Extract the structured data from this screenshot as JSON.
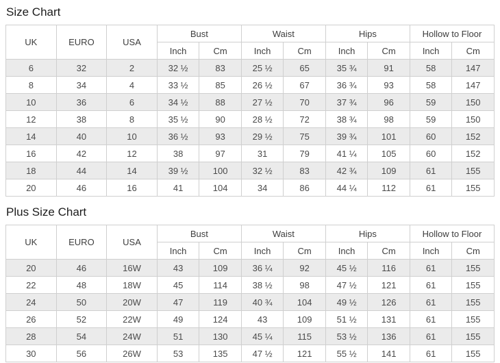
{
  "colors": {
    "background": "#ffffff",
    "border": "#cfcfcf",
    "alt_row_background": "#ebebeb",
    "cell_text": "#4a4a4a",
    "title_text": "#1c1c1c"
  },
  "tables": [
    {
      "title": "Size Chart",
      "corner_headers": [
        "UK",
        "EURO",
        "USA"
      ],
      "measure_groups": [
        "Bust",
        "Waist",
        "Hips",
        "Hollow to Floor"
      ],
      "unit_labels": [
        "Inch",
        "Cm"
      ],
      "rows": [
        [
          "6",
          "32",
          "2",
          "32 ½",
          "83",
          "25 ½",
          "65",
          "35 ¾",
          "91",
          "58",
          "147"
        ],
        [
          "8",
          "34",
          "4",
          "33 ½",
          "85",
          "26 ½",
          "67",
          "36 ¾",
          "93",
          "58",
          "147"
        ],
        [
          "10",
          "36",
          "6",
          "34 ½",
          "88",
          "27 ½",
          "70",
          "37 ¾",
          "96",
          "59",
          "150"
        ],
        [
          "12",
          "38",
          "8",
          "35 ½",
          "90",
          "28 ½",
          "72",
          "38 ¾",
          "98",
          "59",
          "150"
        ],
        [
          "14",
          "40",
          "10",
          "36 ½",
          "93",
          "29 ½",
          "75",
          "39 ¾",
          "101",
          "60",
          "152"
        ],
        [
          "16",
          "42",
          "12",
          "38",
          "97",
          "31",
          "79",
          "41 ¼",
          "105",
          "60",
          "152"
        ],
        [
          "18",
          "44",
          "14",
          "39 ½",
          "100",
          "32 ½",
          "83",
          "42 ¾",
          "109",
          "61",
          "155"
        ],
        [
          "20",
          "46",
          "16",
          "41",
          "104",
          "34",
          "86",
          "44 ¼",
          "112",
          "61",
          "155"
        ]
      ]
    },
    {
      "title": "Plus Size Chart",
      "corner_headers": [
        "UK",
        "EURO",
        "USA"
      ],
      "measure_groups": [
        "Bust",
        "Waist",
        "Hips",
        "Hollow to Floor"
      ],
      "unit_labels": [
        "Inch",
        "Cm"
      ],
      "rows": [
        [
          "20",
          "46",
          "16W",
          "43",
          "109",
          "36 ¼",
          "92",
          "45 ½",
          "116",
          "61",
          "155"
        ],
        [
          "22",
          "48",
          "18W",
          "45",
          "114",
          "38 ½",
          "98",
          "47 ½",
          "121",
          "61",
          "155"
        ],
        [
          "24",
          "50",
          "20W",
          "47",
          "119",
          "40 ¾",
          "104",
          "49 ½",
          "126",
          "61",
          "155"
        ],
        [
          "26",
          "52",
          "22W",
          "49",
          "124",
          "43",
          "109",
          "51 ½",
          "131",
          "61",
          "155"
        ],
        [
          "28",
          "54",
          "24W",
          "51",
          "130",
          "45 ¼",
          "115",
          "53 ½",
          "136",
          "61",
          "155"
        ],
        [
          "30",
          "56",
          "26W",
          "53",
          "135",
          "47 ½",
          "121",
          "55 ½",
          "141",
          "61",
          "155"
        ]
      ]
    }
  ]
}
